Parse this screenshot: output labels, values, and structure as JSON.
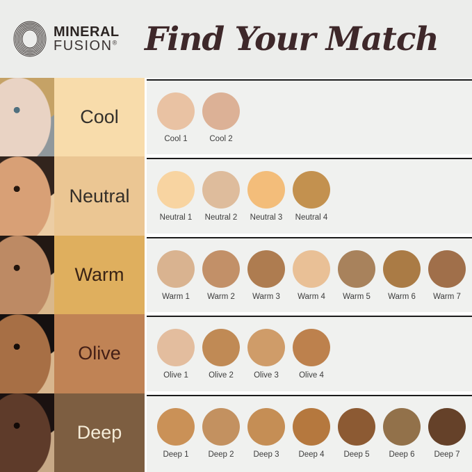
{
  "header": {
    "brand": {
      "line1": "MINERAL",
      "line2": "FUSION",
      "registered": "®"
    },
    "title": "Find Your Match"
  },
  "colors": {
    "header_bg": "#ecedeb",
    "panel_bg": "#f0f1ef",
    "divider": "#1b1b1b",
    "title_text": "#3e282a",
    "brand_text": "#2b2422",
    "swatch_label_text": "#3c3c3c"
  },
  "rows": [
    {
      "id": "cool",
      "label": "Cool",
      "label_bg": "#f8dcab",
      "label_color": "#33302b",
      "photo": {
        "bg": "#90989c",
        "hair": "#c5a266",
        "skin": "#e9d3c4",
        "eye": "#50707f"
      },
      "swatches": [
        {
          "name": "Cool 1",
          "color": "#e9c2a3"
        },
        {
          "name": "Cool 2",
          "color": "#dcb196"
        }
      ]
    },
    {
      "id": "neutral",
      "label": "Neutral",
      "label_bg": "#ebc693",
      "label_color": "#332e28",
      "photo": {
        "bg": "#eccda4",
        "hair": "#32241d",
        "skin": "#d8a076",
        "eye": "#27180f"
      },
      "swatches": [
        {
          "name": "Neutral 1",
          "color": "#f8d4a1"
        },
        {
          "name": "Neutral 2",
          "color": "#debc9c"
        },
        {
          "name": "Neutral 3",
          "color": "#f3bd7a"
        },
        {
          "name": "Neutral 4",
          "color": "#c3914f"
        }
      ]
    },
    {
      "id": "warm",
      "label": "Warm",
      "label_bg": "#dfaf5e",
      "label_color": "#3a2315",
      "photo": {
        "bg": "#d9b88c",
        "hair": "#221813",
        "skin": "#bd8a64",
        "eye": "#23150d"
      },
      "swatches": [
        {
          "name": "Warm 1",
          "color": "#d9b390"
        },
        {
          "name": "Warm 2",
          "color": "#c29068"
        },
        {
          "name": "Warm 3",
          "color": "#ae7c50"
        },
        {
          "name": "Warm 4",
          "color": "#e9c096"
        },
        {
          "name": "Warm 5",
          "color": "#a8825c"
        },
        {
          "name": "Warm 6",
          "color": "#aa7b45"
        },
        {
          "name": "Warm 7",
          "color": "#a06f4a"
        }
      ]
    },
    {
      "id": "olive",
      "label": "Olive",
      "label_bg": "#c08355",
      "label_color": "#441f16",
      "photo": {
        "bg": "#d8b68e",
        "hair": "#141010",
        "skin": "#a76f45",
        "eye": "#160d09"
      },
      "swatches": [
        {
          "name": "Olive 1",
          "color": "#e3bd9e"
        },
        {
          "name": "Olive 2",
          "color": "#c08a55"
        },
        {
          "name": "Olive 3",
          "color": "#cf9c69"
        },
        {
          "name": "Olive 4",
          "color": "#bd814d"
        }
      ]
    },
    {
      "id": "deep",
      "label": "Deep",
      "label_bg": "#7d5e41",
      "label_color": "#f5ecd8",
      "photo": {
        "bg": "#c7a987",
        "hair": "#1a1110",
        "skin": "#5e3b2a",
        "eye": "#120a07"
      },
      "swatches": [
        {
          "name": "Deep 1",
          "color": "#ca9157"
        },
        {
          "name": "Deep 2",
          "color": "#c39160"
        },
        {
          "name": "Deep 3",
          "color": "#c58e55"
        },
        {
          "name": "Deep 4",
          "color": "#b5783e"
        },
        {
          "name": "Deep 5",
          "color": "#8c5a33"
        },
        {
          "name": "Deep 6",
          "color": "#92714a"
        },
        {
          "name": "Deep 7",
          "color": "#654129"
        }
      ]
    }
  ],
  "chart_data": {
    "type": "table",
    "title": "Find Your Match",
    "row_headers": [
      "Cool",
      "Neutral",
      "Warm",
      "Olive",
      "Deep"
    ],
    "rows": [
      {
        "undertone": "Cool",
        "shades": [
          "Cool 1",
          "Cool 2"
        ],
        "hex": [
          "#e9c2a3",
          "#dcb196"
        ]
      },
      {
        "undertone": "Neutral",
        "shades": [
          "Neutral 1",
          "Neutral 2",
          "Neutral 3",
          "Neutral 4"
        ],
        "hex": [
          "#f8d4a1",
          "#debc9c",
          "#f3bd7a",
          "#c3914f"
        ]
      },
      {
        "undertone": "Warm",
        "shades": [
          "Warm 1",
          "Warm 2",
          "Warm 3",
          "Warm 4",
          "Warm 5",
          "Warm 6",
          "Warm 7"
        ],
        "hex": [
          "#d9b390",
          "#c29068",
          "#ae7c50",
          "#e9c096",
          "#a8825c",
          "#aa7b45",
          "#a06f4a"
        ]
      },
      {
        "undertone": "Olive",
        "shades": [
          "Olive 1",
          "Olive 2",
          "Olive 3",
          "Olive 4"
        ],
        "hex": [
          "#e3bd9e",
          "#c08a55",
          "#cf9c69",
          "#bd814d"
        ]
      },
      {
        "undertone": "Deep",
        "shades": [
          "Deep 1",
          "Deep 2",
          "Deep 3",
          "Deep 4",
          "Deep 5",
          "Deep 6",
          "Deep 7"
        ],
        "hex": [
          "#ca9157",
          "#c39160",
          "#c58e55",
          "#b5783e",
          "#8c5a33",
          "#92714a",
          "#654129"
        ]
      }
    ]
  }
}
